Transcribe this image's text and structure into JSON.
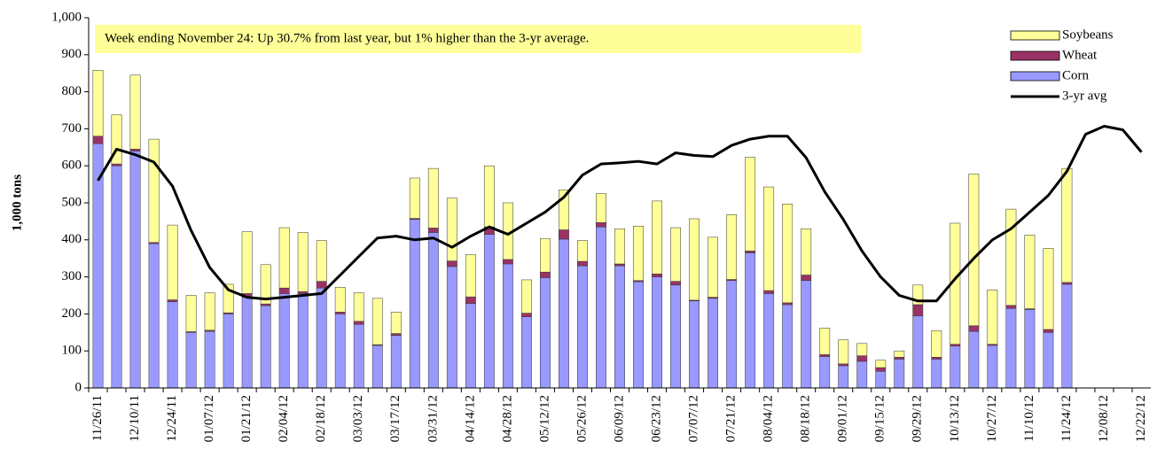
{
  "chart_data": {
    "type": "bar",
    "stacked": true,
    "annotation": "Week ending November 24:  Up 30.7%  from last year, but 1% higher than the 3-yr average.",
    "y_label": "1,000 tons",
    "categories": [
      "11/26/11",
      null,
      "12/10/11",
      null,
      "12/24/11",
      null,
      "01/07/12",
      null,
      "01/21/12",
      null,
      "02/04/12",
      null,
      "02/18/12",
      null,
      "03/03/12",
      null,
      "03/17/12",
      null,
      "03/31/12",
      null,
      "04/14/12",
      null,
      "04/28/12",
      null,
      "05/12/12",
      null,
      "05/26/12",
      null,
      "06/09/12",
      null,
      "06/23/12",
      null,
      "07/07/12",
      null,
      "07/21/12",
      null,
      "08/04/12",
      null,
      "08/18/12",
      null,
      "09/01/12",
      null,
      "09/15/12",
      null,
      "09/29/12",
      null,
      "10/13/12",
      null,
      "10/27/12",
      null,
      "11/10/12",
      null,
      "11/24/12",
      null,
      "12/08/12",
      null,
      "12/22/12"
    ],
    "series": [
      {
        "name": "Corn",
        "color": "#9999ff",
        "values": [
          660,
          600,
          640,
          390,
          233,
          150,
          153,
          200,
          245,
          222,
          255,
          255,
          270,
          200,
          172,
          115,
          142,
          455,
          420,
          328,
          228,
          415,
          335,
          192,
          298,
          402,
          330,
          435,
          330,
          287,
          300,
          278,
          235,
          242,
          290,
          365,
          255,
          225,
          290,
          85,
          60,
          72,
          45,
          78,
          195,
          78,
          113,
          153,
          115,
          215,
          212,
          150,
          280,
          null,
          null,
          null,
          null
        ]
      },
      {
        "name": "Wheat",
        "color": "#993366",
        "values": [
          20,
          5,
          5,
          3,
          5,
          2,
          3,
          3,
          10,
          5,
          15,
          5,
          18,
          5,
          8,
          2,
          5,
          3,
          12,
          15,
          18,
          20,
          12,
          10,
          15,
          25,
          12,
          12,
          5,
          3,
          8,
          10,
          2,
          3,
          3,
          5,
          8,
          5,
          15,
          5,
          5,
          15,
          10,
          5,
          30,
          5,
          5,
          15,
          3,
          8,
          2,
          8,
          5,
          null,
          null,
          null,
          null
        ]
      },
      {
        "name": "Soybeans",
        "color": "#ffff99",
        "values": [
          178,
          133,
          200,
          279,
          202,
          98,
          101,
          77,
          167,
          106,
          163,
          160,
          110,
          67,
          77,
          125,
          58,
          109,
          161,
          170,
          114,
          165,
          153,
          90,
          90,
          108,
          56,
          78,
          95,
          147,
          197,
          145,
          220,
          162,
          175,
          253,
          280,
          267,
          125,
          72,
          65,
          33,
          20,
          17,
          53,
          72,
          327,
          410,
          147,
          260,
          199,
          219,
          308,
          null,
          null,
          null,
          null
        ]
      },
      {
        "name": "3-yr avg",
        "type": "line",
        "color": "#000000",
        "values": [
          560,
          645,
          630,
          610,
          545,
          425,
          325,
          265,
          245,
          240,
          245,
          250,
          255,
          305,
          355,
          405,
          410,
          400,
          405,
          380,
          410,
          435,
          415,
          445,
          475,
          515,
          575,
          605,
          608,
          612,
          605,
          635,
          628,
          625,
          655,
          672,
          680,
          680,
          622,
          530,
          455,
          370,
          300,
          250,
          235,
          235,
          295,
          350,
          400,
          430,
          475,
          520,
          585,
          685,
          707,
          697,
          637
        ]
      }
    ],
    "ylim": [
      0,
      1000
    ],
    "yticks": [
      0,
      100,
      200,
      300,
      400,
      500,
      600,
      700,
      800,
      900,
      {
        "value": 1000,
        "label": "1,000"
      }
    ],
    "grid": false,
    "legend": "top-right"
  }
}
